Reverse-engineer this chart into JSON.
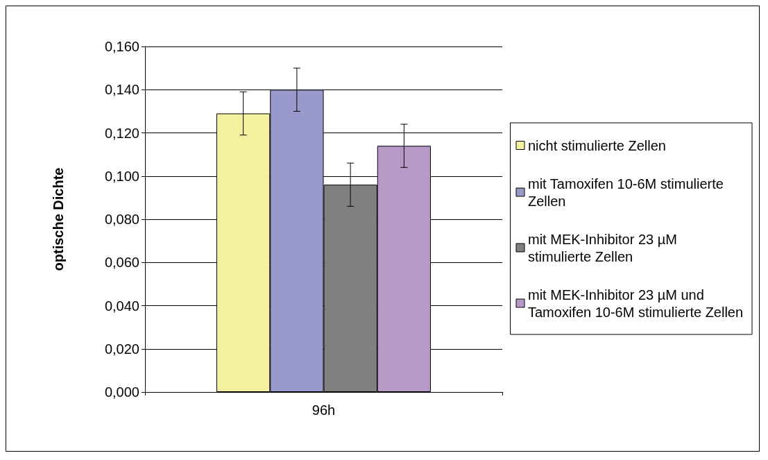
{
  "chart_data": {
    "type": "bar",
    "categories": [
      "96h"
    ],
    "ylabel": "optische Dichte",
    "ylim": [
      0,
      0.16
    ],
    "yticks": [
      {
        "value": 0,
        "label": "0,000"
      },
      {
        "value": 0.02,
        "label": "0,020"
      },
      {
        "value": 0.04,
        "label": "0,040"
      },
      {
        "value": 0.06,
        "label": "0,060"
      },
      {
        "value": 0.08,
        "label": "0,080"
      },
      {
        "value": 0.1,
        "label": "0,100"
      },
      {
        "value": 0.12,
        "label": "0,120"
      },
      {
        "value": 0.14,
        "label": "0,140"
      },
      {
        "value": 0.16,
        "label": "0,160"
      }
    ],
    "grid": "y",
    "legend": "right",
    "series": [
      {
        "name": "nicht stimulierte Zellen",
        "color": "#f3f09f",
        "values": [
          0.129
        ],
        "errors": [
          0.01
        ]
      },
      {
        "name": "mit Tamoxifen 10-6M stimulierte Zellen",
        "color": "#9999cc",
        "values": [
          0.14
        ],
        "errors": [
          0.01
        ]
      },
      {
        "name": "mit MEK-Inhibitor 23 µM stimulierte Zellen",
        "color": "#808080",
        "values": [
          0.096
        ],
        "errors": [
          0.01
        ]
      },
      {
        "name": "mit MEK-Inhibitor 23 µM und Tamoxifen 10-6M stimulierte Zellen",
        "color": "#b799c8",
        "values": [
          0.114
        ],
        "errors": [
          0.01
        ]
      }
    ]
  }
}
